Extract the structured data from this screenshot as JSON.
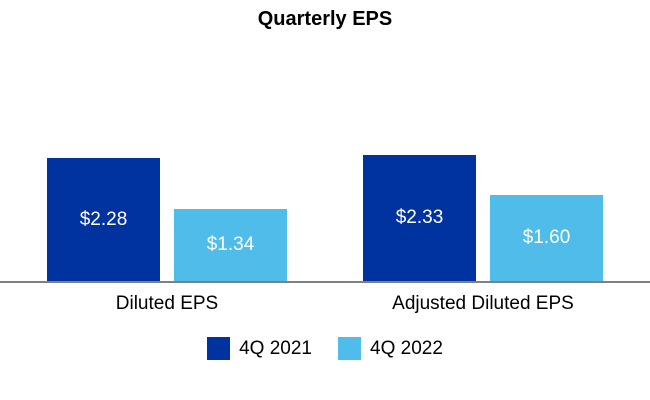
{
  "chart_data": {
    "type": "bar",
    "title": "Quarterly EPS",
    "categories": [
      "Diluted EPS",
      "Adjusted Diluted EPS"
    ],
    "series": [
      {
        "name": "4Q 2021",
        "color": "#0033A0",
        "values": [
          2.28,
          2.33
        ],
        "labels": [
          "$2.28",
          "$2.33"
        ]
      },
      {
        "name": "4Q 2022",
        "color": "#4FBCE9",
        "values": [
          1.34,
          1.6
        ],
        "labels": [
          "$1.34",
          "$1.60"
        ]
      }
    ],
    "ylim": [
      0,
      4.5
    ],
    "grid": false,
    "legend_position": "bottom",
    "axis_line_color": "#808080",
    "data_label_color": "#ffffff"
  }
}
